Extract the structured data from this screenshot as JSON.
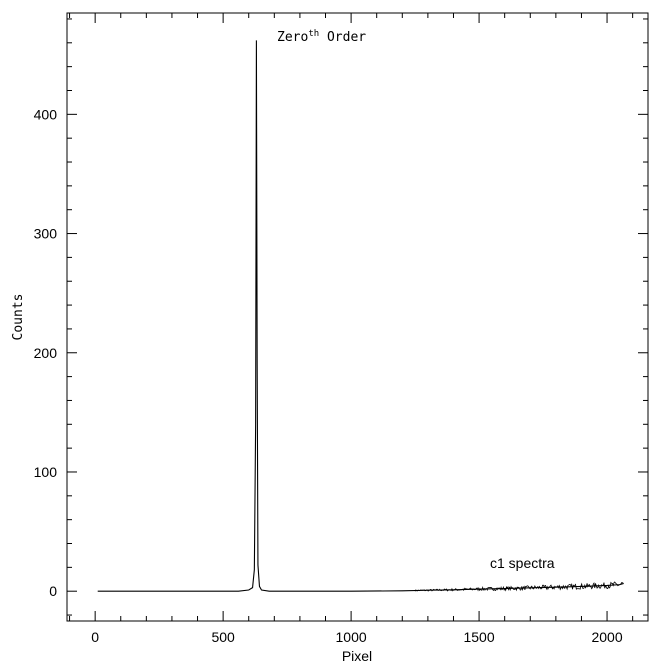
{
  "chart_data": {
    "type": "line",
    "title": "",
    "xlabel": "Pixel",
    "ylabel": "Counts",
    "xlim": [
      -110,
      2160
    ],
    "ylim": [
      -25,
      485
    ],
    "x_ticks": [
      0,
      500,
      1000,
      1500,
      2000
    ],
    "y_ticks": [
      0,
      100,
      200,
      300,
      400
    ],
    "x_tick_labels": [
      "0",
      "500",
      "1000",
      "1500",
      "2000"
    ],
    "y_tick_labels": [
      "0",
      "100",
      "200",
      "300",
      "400"
    ],
    "grid": false,
    "legend": "none",
    "series": [
      {
        "x": [
          10,
          200,
          400,
          560,
          600,
          615,
          622,
          627,
          630,
          633,
          636,
          642,
          650,
          680,
          800,
          1000,
          1200,
          1300,
          1400,
          1500,
          1600,
          1700,
          1800,
          1900,
          2000,
          2050,
          2065
        ],
        "y": [
          0,
          0,
          0,
          0,
          1,
          3,
          18,
          140,
          462,
          190,
          22,
          4,
          1,
          0,
          0,
          0,
          0.3,
          0.8,
          1.2,
          1.8,
          2.2,
          2.8,
          3.4,
          4.0,
          4.8,
          5.5,
          6.5
        ]
      }
    ],
    "annotations": [
      {
        "text": "Zero",
        "superscript": "th",
        "suffix": " Order",
        "x": 760,
        "y": 462
      },
      {
        "text": "c1 spectra",
        "x": 1700,
        "y": 16
      }
    ]
  }
}
